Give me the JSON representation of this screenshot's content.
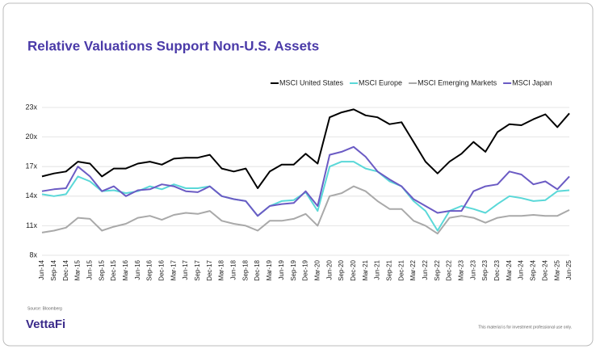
{
  "chart_data": {
    "type": "line",
    "title": "Relative Valuations Support Non-U.S. Assets",
    "source": "Source: Bloomberg",
    "brand": "VettaFi",
    "disclaimer": "This material is for investment professional use only.",
    "categories": [
      "Jun-14",
      "Sep-14",
      "Dec-14",
      "Mar-15",
      "Jun-15",
      "Sep-15",
      "Dec-15",
      "Mar-16",
      "Jun-16",
      "Sep-16",
      "Dec-16",
      "Mar-17",
      "Jun-17",
      "Sep-17",
      "Dec-17",
      "Mar-18",
      "Jun-18",
      "Sep-18",
      "Dec-18",
      "Mar-19",
      "Jun-19",
      "Sep-19",
      "Dec-19",
      "Mar-20",
      "Jun-20",
      "Sep-20",
      "Dec-20",
      "Mar-21",
      "Jun-21",
      "Sep-21",
      "Dec-21",
      "Mar-22",
      "Jun-22",
      "Sep-22",
      "Dec-22",
      "Mar-23",
      "Jun-23",
      "Sep-23",
      "Dec-23",
      "Mar-24",
      "Jun-24",
      "Sep-24",
      "Dec-24",
      "Mar-25",
      "Jun-25"
    ],
    "series": [
      {
        "name": "MSCI United States",
        "color": "#000000",
        "values": [
          16,
          16.3,
          16.5,
          17.5,
          17.3,
          16,
          16.8,
          16.8,
          17.3,
          17.5,
          17.2,
          17.8,
          17.9,
          17.9,
          18.2,
          16.8,
          16.5,
          16.8,
          14.8,
          16.5,
          17.2,
          17.2,
          18.3,
          17.3,
          22,
          22.5,
          22.8,
          22.2,
          22,
          21.3,
          21.5,
          19.5,
          17.5,
          16.3,
          17.5,
          18.3,
          19.5,
          18.5,
          20.5,
          21.3,
          21.2,
          21.8,
          22.3,
          21,
          22.4
        ]
      },
      {
        "name": "MSCI Europe",
        "color": "#5ad8d8",
        "values": [
          14.2,
          14,
          14.2,
          16,
          15.5,
          14.5,
          14.6,
          14.3,
          14.5,
          15,
          14.7,
          15.2,
          14.8,
          14.8,
          15,
          14,
          13.7,
          13.5,
          12,
          13,
          13.5,
          13.6,
          14.4,
          12.5,
          17,
          17.5,
          17.5,
          16.8,
          16.5,
          15.5,
          15,
          13.5,
          12.5,
          10.5,
          12.5,
          13,
          12.7,
          12.3,
          13.2,
          14,
          13.8,
          13.5,
          13.6,
          14.5,
          14.6
        ]
      },
      {
        "name": "MSCI Emerging Markets",
        "color": "#a9a9a9",
        "values": [
          10.3,
          10.5,
          10.8,
          11.8,
          11.7,
          10.5,
          10.9,
          11.2,
          11.8,
          12,
          11.6,
          12.1,
          12.3,
          12.2,
          12.5,
          11.5,
          11.2,
          11,
          10.5,
          11.5,
          11.5,
          11.7,
          12.2,
          11,
          14,
          14.3,
          15,
          14.5,
          13.5,
          12.7,
          12.7,
          11.5,
          11,
          10.2,
          11.8,
          12,
          11.8,
          11.3,
          11.8,
          12,
          12,
          12.1,
          12,
          12,
          12.6
        ]
      },
      {
        "name": "MSCI Japan",
        "color": "#6b5bc4",
        "values": [
          14.5,
          14.7,
          14.8,
          17,
          16,
          14.5,
          15,
          14,
          14.6,
          14.7,
          15.2,
          15,
          14.5,
          14.4,
          15,
          14,
          13.7,
          13.5,
          12,
          13,
          13.2,
          13.3,
          14.5,
          13,
          18.2,
          18.5,
          19,
          18,
          16.5,
          15.7,
          15,
          13.7,
          13,
          12.3,
          12.5,
          12.5,
          14.5,
          15,
          15.2,
          16.5,
          16.2,
          15.2,
          15.5,
          14.7,
          16
        ]
      }
    ],
    "ylim": [
      8,
      23
    ],
    "yticks": [
      {
        "value": 8,
        "label": "8x"
      },
      {
        "value": 11,
        "label": "11x"
      },
      {
        "value": 14,
        "label": "14x"
      },
      {
        "value": 17,
        "label": "17x"
      },
      {
        "value": 20,
        "label": "20x"
      },
      {
        "value": 23,
        "label": "23x"
      }
    ],
    "grid": true,
    "legend": "top-right"
  }
}
